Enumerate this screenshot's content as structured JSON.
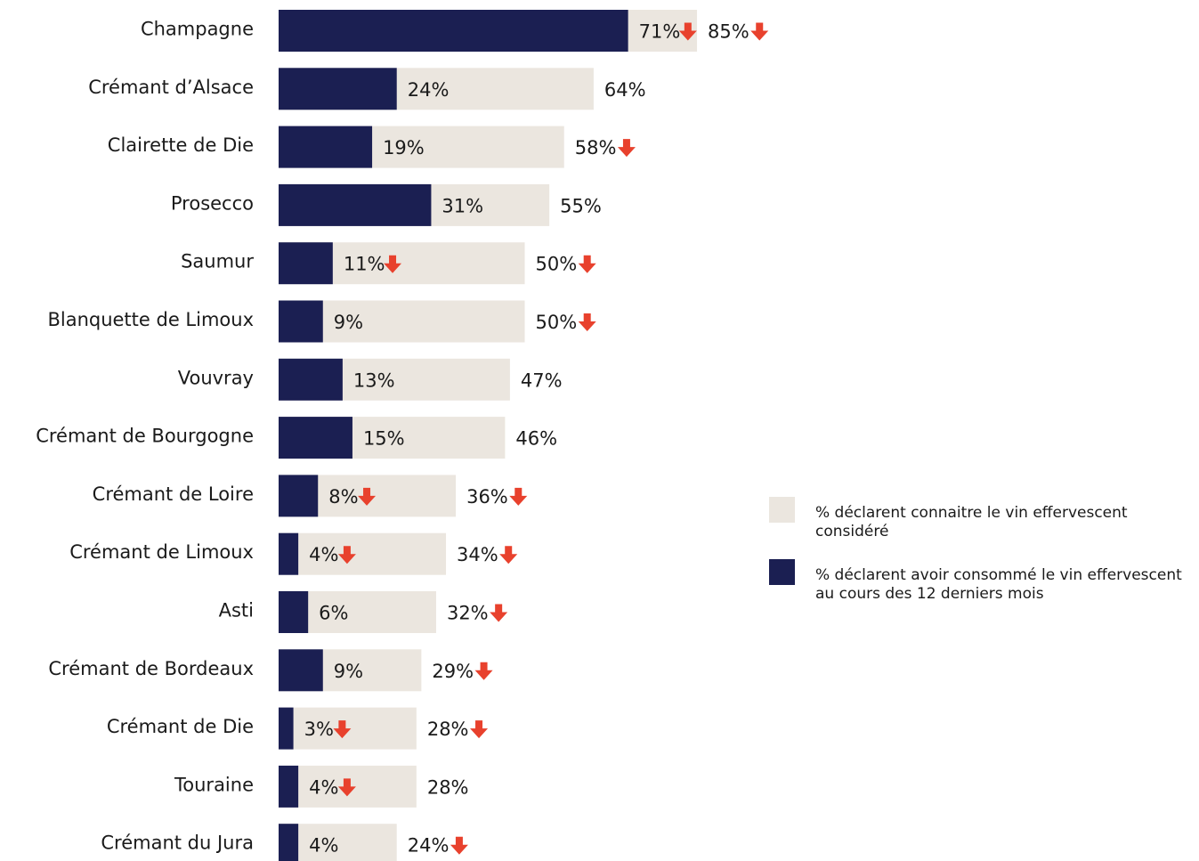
{
  "colors": {
    "known": "#ebe6df",
    "consumed": "#1b1f52",
    "arrow": "#e8412d",
    "text": "#1a1a1a"
  },
  "legend": {
    "known_label": "% déclarent connaitre le vin effervescent considéré",
    "consumed_label": "% déclarent avoir consommé le vin effervescent au cours des 12 derniers mois"
  },
  "chart_data": {
    "type": "bar",
    "orientation": "horizontal",
    "stacked": false,
    "overlay": true,
    "xlim": [
      0,
      100
    ],
    "unit": "%",
    "categories": [
      "Champagne",
      "Crémant d’Alsace",
      "Clairette de Die",
      "Prosecco",
      "Saumur",
      "Blanquette de Limoux",
      "Vouvray",
      "Crémant de Bourgogne",
      "Crémant de Loire",
      "Crémant de Limoux",
      "Asti",
      "Crémant de Bordeaux",
      "Crémant de Die",
      "Touraine",
      "Crémant du Jura"
    ],
    "series": [
      {
        "key": "known",
        "name": "% déclarent connaitre le vin effervescent considéré",
        "values": [
          85,
          64,
          58,
          55,
          50,
          50,
          47,
          46,
          36,
          34,
          32,
          29,
          28,
          28,
          24
        ],
        "labels": [
          "85%",
          "64%",
          "58%",
          "55%",
          "50%",
          "50%",
          "47%",
          "46%",
          "36%",
          "34%",
          "32%",
          "29%",
          "28%",
          "28%",
          "24%"
        ],
        "down_arrows": [
          true,
          false,
          true,
          false,
          true,
          true,
          false,
          false,
          true,
          true,
          true,
          true,
          true,
          false,
          true
        ]
      },
      {
        "key": "consumed",
        "name": "% déclarent avoir consommé le vin effervescent au cours des 12 derniers mois",
        "values": [
          71,
          24,
          19,
          31,
          11,
          9,
          13,
          15,
          8,
          4,
          6,
          9,
          3,
          4,
          4
        ],
        "labels": [
          "71%",
          "24%",
          "19%",
          "31%",
          "11%",
          "9%",
          "13%",
          "15%",
          "8%",
          "4%",
          "6%",
          "9%",
          "3%",
          "4%",
          "4%"
        ],
        "down_arrows": [
          true,
          false,
          false,
          false,
          true,
          false,
          false,
          false,
          true,
          true,
          false,
          false,
          true,
          true,
          false
        ]
      }
    ]
  }
}
